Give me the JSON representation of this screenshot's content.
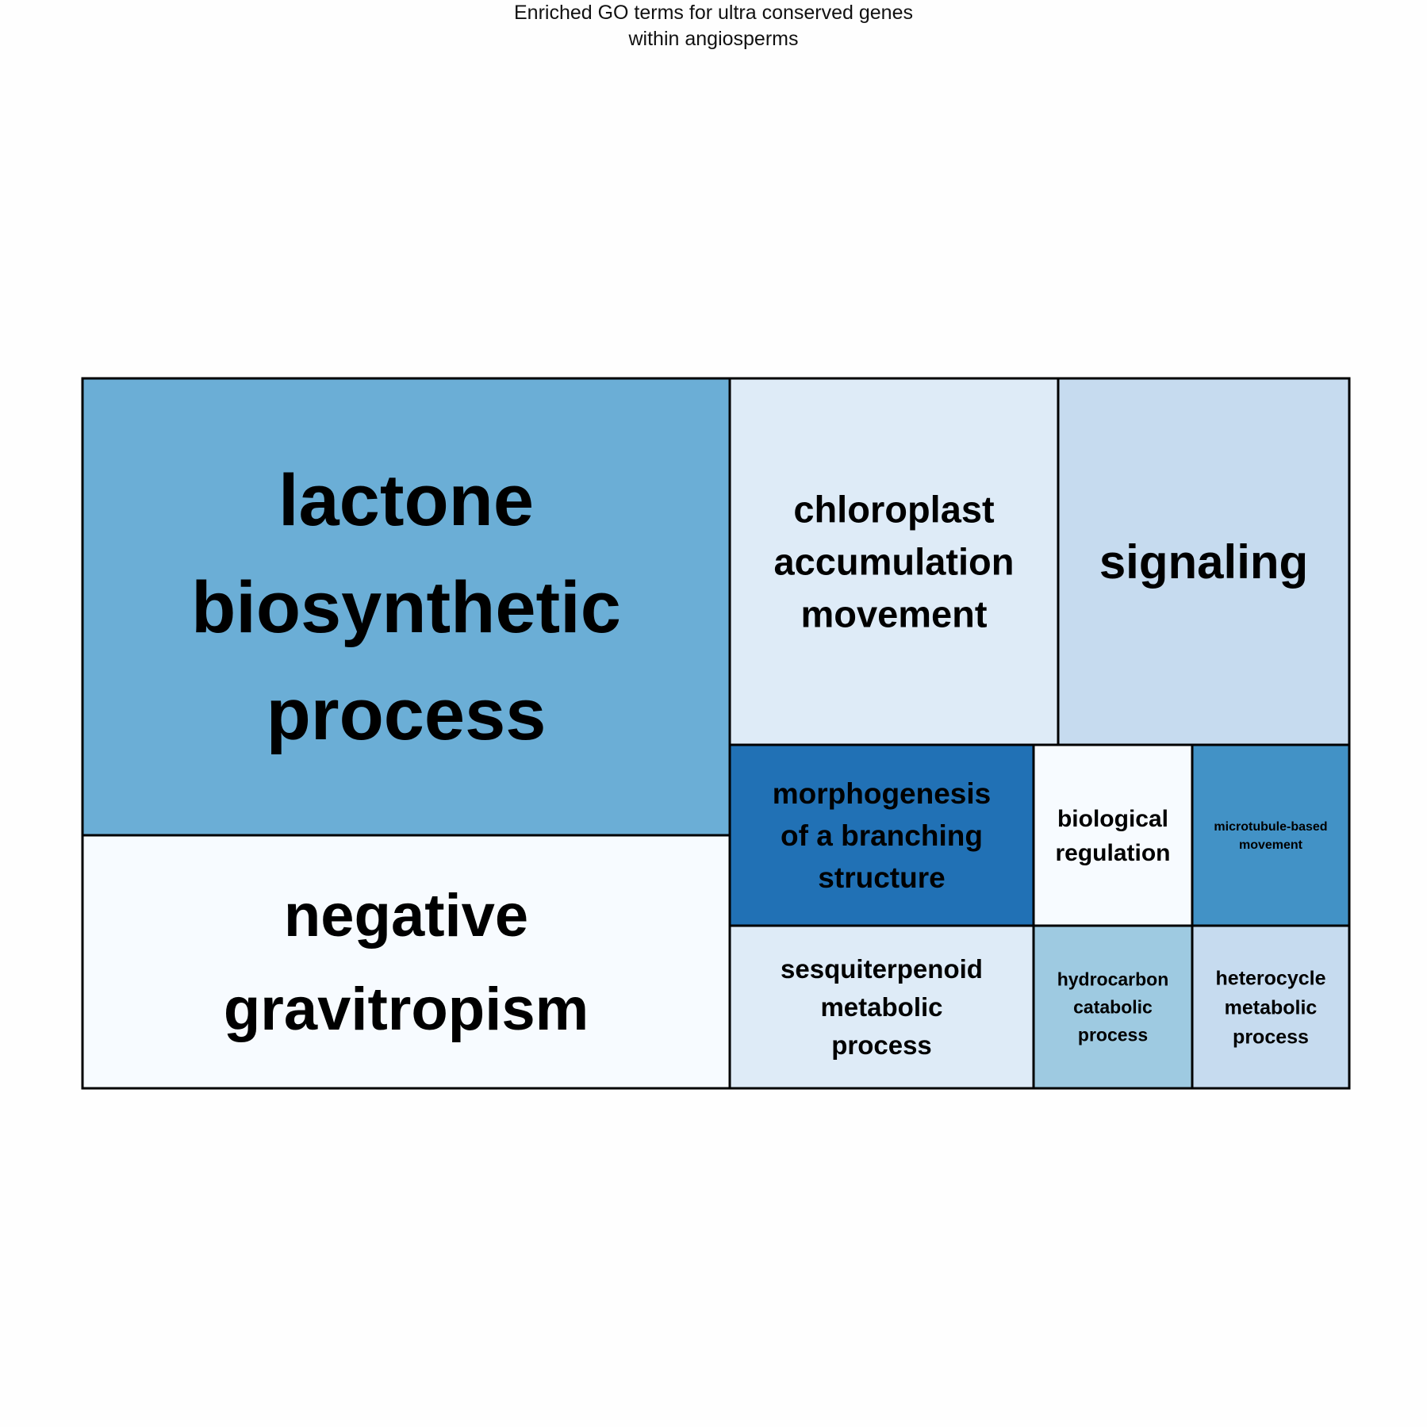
{
  "chart_data": {
    "type": "treemap",
    "title": "Enriched GO terms for ultra conserved genes within angiosperms",
    "title_lines": [
      "Enriched GO terms for ultra conserved genes",
      "within angiosperms"
    ],
    "color_scale": "Blues",
    "tiles": [
      {
        "id": "lactone",
        "label": "lactone biosynthetic process",
        "lines": [
          "lactone",
          "biosynthetic",
          "process"
        ],
        "color": "#6baed6"
      },
      {
        "id": "gravitropism",
        "label": "negative gravitropism",
        "lines": [
          "negative",
          "gravitropism"
        ],
        "color": "#f7fbff"
      },
      {
        "id": "chloroplast",
        "label": "chloroplast accumulation movement",
        "lines": [
          "chloroplast",
          "accumulation",
          "movement"
        ],
        "color": "#deebf7"
      },
      {
        "id": "signaling",
        "label": "signaling",
        "lines": [
          "signaling"
        ],
        "color": "#c6dbef"
      },
      {
        "id": "morphogenesis",
        "label": "morphogenesis of a branching structure",
        "lines": [
          "morphogenesis",
          "of a branching",
          "structure"
        ],
        "color": "#2171b5"
      },
      {
        "id": "biological-regulation",
        "label": "biological regulation",
        "lines": [
          "biological",
          "regulation"
        ],
        "color": "#f7fbff"
      },
      {
        "id": "microtubule",
        "label": "microtubule-based movement",
        "lines": [
          "microtubule-based",
          "movement"
        ],
        "color": "#4292c6"
      },
      {
        "id": "sesquiterpenoid",
        "label": "sesquiterpenoid metabolic process",
        "lines": [
          "sesquiterpenoid",
          "metabolic",
          "process"
        ],
        "color": "#deebf7"
      },
      {
        "id": "hydrocarbon",
        "label": "hydrocarbon catabolic process",
        "lines": [
          "hydrocarbon",
          "catabolic",
          "process"
        ],
        "color": "#9ecae1"
      },
      {
        "id": "heterocycle",
        "label": "heterocycle metabolic process",
        "lines": [
          "heterocycle",
          "metabolic",
          "process"
        ],
        "color": "#c6dbef"
      }
    ]
  }
}
